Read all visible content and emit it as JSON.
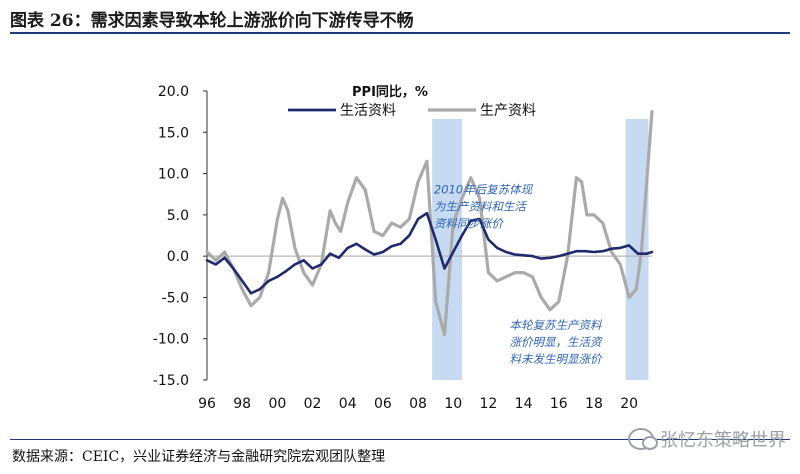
{
  "figure_title": "图表 26：需求因素导致本轮上游涨价向下游传导不畅",
  "source_note": "数据来源：CEIC，兴业证券经济与金融研究院宏观团队整理",
  "watermark": "张忆东策略世界",
  "chart_data": {
    "type": "line",
    "title": "PPI同比，%",
    "xlabel": "",
    "ylabel": "",
    "ylim": [
      -15,
      20
    ],
    "xlim": [
      1996,
      2021.3
    ],
    "yticks": [
      "20.0",
      "15.0",
      "10.0",
      "5.0",
      "0.0",
      "-5.0",
      "-10.0",
      "-15.0"
    ],
    "ytick_values": [
      20,
      15,
      10,
      5,
      0,
      -5,
      -10,
      -15
    ],
    "xticks": [
      "96",
      "98",
      "00",
      "02",
      "04",
      "06",
      "08",
      "10",
      "12",
      "14",
      "16",
      "18",
      "20"
    ],
    "xtick_values": [
      1996,
      1998,
      2000,
      2002,
      2004,
      2006,
      2008,
      2010,
      2012,
      2014,
      2016,
      2018,
      2020
    ],
    "legend_position": "top",
    "grid": false,
    "colors": {
      "consumer": "#1f2a6e",
      "producer": "#aaaaaa",
      "shade": "#bcd3ef",
      "annotation": "#2e63b8"
    },
    "shaded_periods": [
      [
        2008.8,
        2010.5
      ],
      [
        2019.8,
        2021.1
      ]
    ],
    "annotations": [
      {
        "lines": [
          "2010年后复苏体现",
          "为生产资料和生活",
          "资料同步涨价"
        ],
        "x": 2008.9,
        "y": 7.6
      },
      {
        "lines": [
          "本轮复苏生产资料",
          "涨价明显，生活资",
          "料未发生明显涨价"
        ],
        "x": 2013.2,
        "y": -8.8
      }
    ],
    "series": [
      {
        "name": "生活资料",
        "x": [
          1996.0,
          1996.5,
          1997.0,
          1997.5,
          1998.0,
          1998.5,
          1999.0,
          1999.5,
          2000.0,
          2000.5,
          2001.0,
          2001.5,
          2002.0,
          2002.5,
          2003.0,
          2003.5,
          2004.0,
          2004.5,
          2005.0,
          2005.5,
          2006.0,
          2006.5,
          2007.0,
          2007.5,
          2008.0,
          2008.5,
          2009.0,
          2009.5,
          2010.0,
          2010.5,
          2011.0,
          2011.5,
          2012.0,
          2012.5,
          2013.0,
          2013.5,
          2014.0,
          2014.5,
          2015.0,
          2015.5,
          2016.0,
          2016.5,
          2017.0,
          2017.5,
          2018.0,
          2018.5,
          2019.0,
          2019.5,
          2020.0,
          2020.5,
          2021.0,
          2021.3
        ],
        "y": [
          -0.5,
          -1.0,
          -0.2,
          -1.5,
          -3.0,
          -4.5,
          -4.0,
          -3.0,
          -2.5,
          -1.8,
          -1.0,
          -0.5,
          -1.5,
          -1.0,
          0.3,
          -0.2,
          1.0,
          1.5,
          0.8,
          0.2,
          0.5,
          1.2,
          1.5,
          2.5,
          4.5,
          5.2,
          2.0,
          -1.5,
          0.5,
          2.5,
          4.3,
          4.5,
          2.0,
          1.0,
          0.5,
          0.2,
          0.1,
          0.0,
          -0.3,
          -0.2,
          0.0,
          0.3,
          0.6,
          0.6,
          0.5,
          0.6,
          0.9,
          1.0,
          1.3,
          0.3,
          0.3,
          0.5
        ]
      },
      {
        "name": "生产资料",
        "x": [
          1996.0,
          1996.5,
          1997.0,
          1997.5,
          1998.0,
          1998.5,
          1999.0,
          1999.5,
          2000.0,
          2000.3,
          2000.6,
          2001.0,
          2001.5,
          2002.0,
          2002.5,
          2003.0,
          2003.3,
          2003.6,
          2004.0,
          2004.5,
          2005.0,
          2005.5,
          2006.0,
          2006.5,
          2007.0,
          2007.5,
          2008.0,
          2008.5,
          2009.0,
          2009.5,
          2010.0,
          2010.5,
          2011.0,
          2011.5,
          2012.0,
          2012.5,
          2013.0,
          2013.5,
          2014.0,
          2014.5,
          2015.0,
          2015.5,
          2016.0,
          2016.5,
          2017.0,
          2017.3,
          2017.6,
          2018.0,
          2018.5,
          2019.0,
          2019.5,
          2020.0,
          2020.4,
          2020.7,
          2021.0,
          2021.3
        ],
        "y": [
          0.5,
          -0.5,
          0.5,
          -1.5,
          -4.0,
          -6.0,
          -5.0,
          -2.0,
          4.5,
          7.0,
          5.5,
          1.0,
          -2.0,
          -3.5,
          -1.0,
          5.5,
          4.0,
          3.0,
          6.5,
          9.5,
          8.0,
          3.0,
          2.5,
          4.0,
          3.5,
          4.5,
          9.0,
          11.5,
          -5.5,
          -9.5,
          4.0,
          7.0,
          9.5,
          7.0,
          -2.0,
          -3.0,
          -2.5,
          -2.0,
          -2.0,
          -2.5,
          -5.0,
          -6.5,
          -5.5,
          0.0,
          9.5,
          9.0,
          5.0,
          5.0,
          4.0,
          0.5,
          -1.0,
          -5.0,
          -4.0,
          0.5,
          9.0,
          17.5
        ]
      }
    ]
  }
}
